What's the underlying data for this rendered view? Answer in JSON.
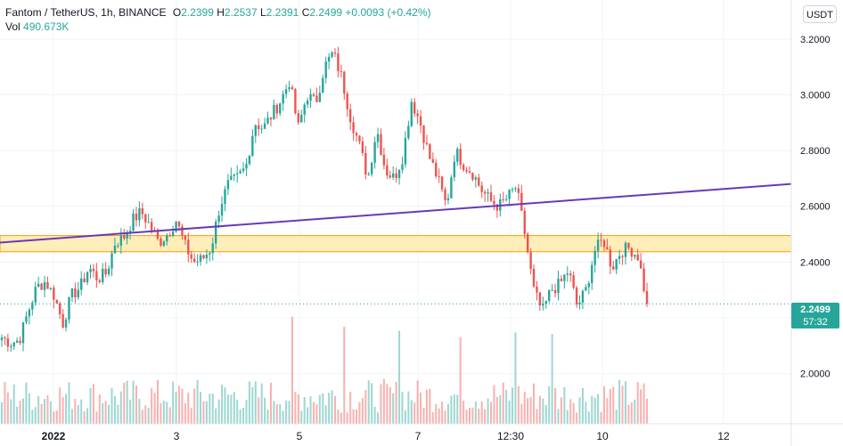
{
  "legend": {
    "symbol": "Fantom / TetherUS, 1h, BINANCE",
    "open_label": "O",
    "open": "2.2399",
    "high_label": "H",
    "high": "2.2537",
    "low_label": "L",
    "low": "2.2391",
    "close_label": "C",
    "close": "2.2499",
    "change": "+0.0093 (+0.42%)",
    "vol_label": "Vol",
    "vol": "490.673K"
  },
  "currency_button": "USDT",
  "last_price": {
    "price": "2.2499",
    "countdown": "57:32",
    "value": 2.2499
  },
  "colors": {
    "up": "#26a69a",
    "down": "#ef5350",
    "trendline": "#673ab7",
    "zone_fill": "#ffeeb9",
    "zone_border": "#ff9800",
    "grid": "#f0f3fa"
  },
  "chart_data": {
    "type": "candlestick",
    "ylim": [
      1.82,
      3.34
    ],
    "y_ticks": [
      2.0,
      2.2,
      2.4,
      2.6,
      2.8,
      3.0,
      3.2
    ],
    "y_tick_labels": [
      "2.0000",
      "2.2000",
      "2.4000",
      "2.6000",
      "2.8000",
      "3.0000",
      "3.2000"
    ],
    "x_ticks": [
      {
        "label": "2022",
        "bold": true
      },
      {
        "label": "3",
        "bold": false
      },
      {
        "label": "5",
        "bold": false
      },
      {
        "label": "7",
        "bold": false
      },
      {
        "label": "12:30",
        "bold": false
      },
      {
        "label": "10",
        "bold": false
      },
      {
        "label": "12",
        "bold": false
      }
    ],
    "price_path": [
      2.13,
      2.11,
      2.12,
      2.22,
      2.31,
      2.33,
      2.28,
      2.18,
      2.28,
      2.31,
      2.38,
      2.34,
      2.36,
      2.47,
      2.49,
      2.55,
      2.58,
      2.53,
      2.47,
      2.5,
      2.55,
      2.46,
      2.4,
      2.41,
      2.45,
      2.6,
      2.68,
      2.7,
      2.74,
      2.9,
      2.88,
      2.93,
      2.98,
      3.05,
      2.88,
      3.0,
      2.97,
      3.1,
      3.15,
      3.06,
      2.92,
      2.82,
      2.7,
      2.88,
      2.73,
      2.7,
      2.78,
      2.98,
      2.9,
      2.78,
      2.7,
      2.6,
      2.8,
      2.75,
      2.72,
      2.66,
      2.62,
      2.6,
      2.63,
      2.67,
      2.5,
      2.3,
      2.22,
      2.3,
      2.32,
      2.37,
      2.24,
      2.3,
      2.44,
      2.48,
      2.38,
      2.44,
      2.45,
      2.42,
      2.25
    ],
    "candle_count": 212,
    "volume_max": 400,
    "zone": [
      2.437,
      2.495
    ],
    "trendline": {
      "start": 2.47,
      "end": 2.68
    }
  }
}
